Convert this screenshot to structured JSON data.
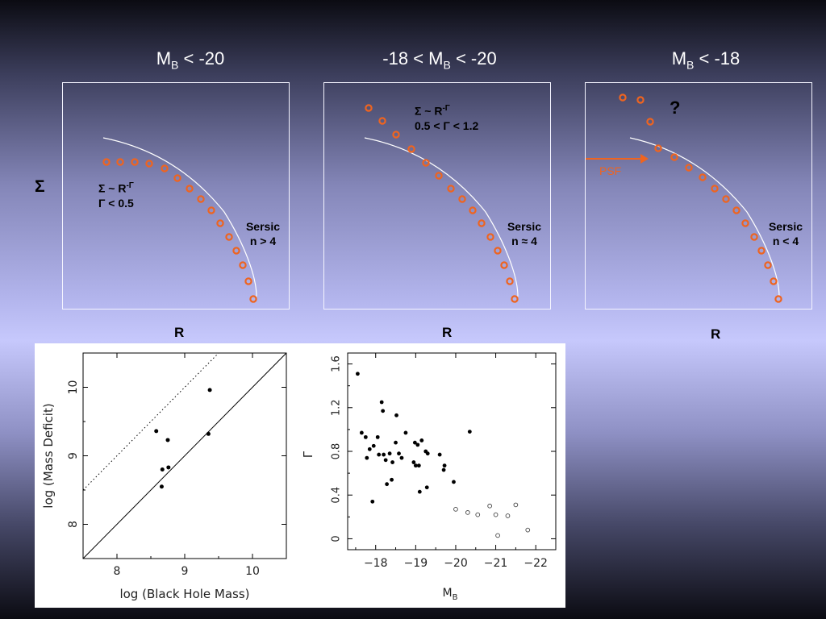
{
  "titles": {
    "left": {
      "pre": "M",
      "sub": "B",
      "post": " < -20"
    },
    "middle": {
      "pre": "-18 < M",
      "sub": "B",
      "post": " < -20"
    },
    "right": {
      "pre": "M",
      "sub": "B",
      "post": " < -18"
    }
  },
  "sigma_label": "Σ",
  "r_labels": [
    "R",
    "R",
    "R"
  ],
  "annotations": {
    "left_power": "Σ ~ R",
    "left_power_exp": "-Γ",
    "left_gamma": "Γ < 0.5",
    "left_sersic": "Sersic",
    "left_sersic_n": "n > 4",
    "mid_power": "Σ ~ R",
    "mid_power_exp": "-Γ",
    "mid_gamma": "0.5 < Γ < 1.2",
    "mid_sersic": "Sersic",
    "mid_sersic_n": "n ≈ 4",
    "right_psf": "PSF",
    "right_question": "?",
    "right_sersic": "Sersic",
    "right_sersic_n": "n < 4"
  },
  "colors": {
    "marker": "#ee6420",
    "curve": "#ffffff"
  },
  "chart_data": [
    {
      "type": "scatter",
      "xlabel": "log (Black Hole Mass)",
      "ylabel": "log (Mass Deficit)",
      "xlim": [
        7.5,
        10.5
      ],
      "ylim": [
        7.5,
        10.5
      ],
      "xticks": [
        8,
        9,
        10
      ],
      "yticks": [
        8,
        9,
        10
      ],
      "points": [
        {
          "x": 8.58,
          "y": 9.36
        },
        {
          "x": 8.75,
          "y": 9.23
        },
        {
          "x": 8.67,
          "y": 8.8
        },
        {
          "x": 8.76,
          "y": 8.83
        },
        {
          "x": 8.66,
          "y": 8.55
        },
        {
          "x": 9.37,
          "y": 9.96
        },
        {
          "x": 9.35,
          "y": 9.32
        }
      ],
      "lines": [
        {
          "style": "solid",
          "from": [
            7.5,
            7.5
          ],
          "to": [
            10.5,
            10.5
          ]
        },
        {
          "style": "dotted",
          "from": [
            7.5,
            8.5
          ],
          "to": [
            9.5,
            10.5
          ]
        }
      ]
    },
    {
      "type": "scatter",
      "xlabel": "M",
      "xlabel_sub": "B",
      "ylabel": "Γ",
      "xlim": [
        -17.3,
        -22.5
      ],
      "ylim": [
        -0.1,
        1.7
      ],
      "xticks": [
        -18,
        -19,
        -20,
        -21,
        -22
      ],
      "xtick_labels": [
        "−18",
        "−19",
        "−20",
        "−21",
        "−22"
      ],
      "yticks": [
        0,
        0.4,
        0.8,
        1.2,
        1.6
      ],
      "ytick_labels": [
        "0",
        "0.4",
        "0.8",
        "1.2",
        "1.6"
      ],
      "series": [
        {
          "marker": "filled",
          "points": [
            [
              -17.55,
              1.51
            ],
            [
              -17.65,
              0.97
            ],
            [
              -17.75,
              0.93
            ],
            [
              -17.78,
              0.74
            ],
            [
              -17.85,
              0.82
            ],
            [
              -17.95,
              0.85
            ],
            [
              -18.05,
              0.93
            ],
            [
              -18.08,
              0.77
            ],
            [
              -17.92,
              0.34
            ],
            [
              -18.15,
              1.25
            ],
            [
              -18.18,
              1.17
            ],
            [
              -18.2,
              0.77
            ],
            [
              -18.25,
              0.72
            ],
            [
              -18.28,
              0.5
            ],
            [
              -18.35,
              0.78
            ],
            [
              -18.4,
              0.54
            ],
            [
              -18.42,
              0.7
            ],
            [
              -18.5,
              0.88
            ],
            [
              -18.52,
              1.13
            ],
            [
              -18.58,
              0.78
            ],
            [
              -18.65,
              0.74
            ],
            [
              -18.75,
              0.97
            ],
            [
              -18.95,
              0.7
            ],
            [
              -18.98,
              0.88
            ],
            [
              -19.0,
              0.67
            ],
            [
              -19.05,
              0.86
            ],
            [
              -19.08,
              0.67
            ],
            [
              -19.1,
              0.43
            ],
            [
              -19.15,
              0.9
            ],
            [
              -19.25,
              0.8
            ],
            [
              -19.3,
              0.78
            ],
            [
              -19.28,
              0.47
            ],
            [
              -19.6,
              0.77
            ],
            [
              -19.7,
              0.63
            ],
            [
              -19.72,
              0.67
            ],
            [
              -19.95,
              0.52
            ],
            [
              -20.35,
              0.98
            ]
          ]
        },
        {
          "marker": "open",
          "points": [
            [
              -20.0,
              0.27
            ],
            [
              -20.3,
              0.24
            ],
            [
              -20.55,
              0.22
            ],
            [
              -20.85,
              0.3
            ],
            [
              -21.0,
              0.22
            ],
            [
              -21.05,
              0.03
            ],
            [
              -21.3,
              0.21
            ],
            [
              -21.5,
              0.31
            ],
            [
              -21.8,
              0.08
            ]
          ]
        }
      ]
    }
  ]
}
